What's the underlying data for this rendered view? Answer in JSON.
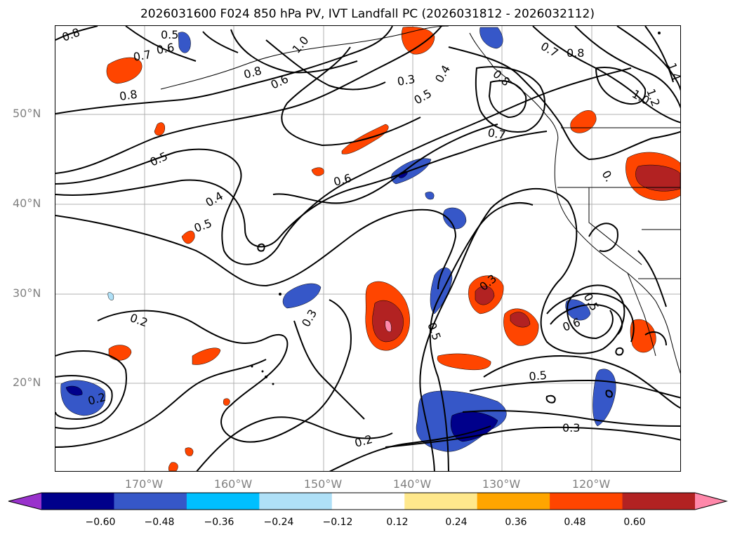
{
  "title": "2026031600 F024 850 hPa PV, IVT Landfall PC (2026031812 - 2026032112)",
  "axes": {
    "lat_labels": [
      "50°N",
      "40°N",
      "30°N",
      "20°N"
    ],
    "lon_labels": [
      "170°W",
      "160°W",
      "150°W",
      "140°W",
      "130°W",
      "120°W"
    ],
    "lat_range": [
      10,
      60
    ],
    "lon_range": [
      -180,
      -110
    ],
    "grid": true
  },
  "colorbar": {
    "tick_labels": [
      "−0.60",
      "−0.48",
      "−0.36",
      "−0.24",
      "−0.12",
      "0.12",
      "0.24",
      "0.36",
      "0.48",
      "0.60"
    ],
    "colors": [
      "#9932cc",
      "#00008b",
      "#3657c8",
      "#00bfff",
      "#afe0f7",
      "#ffffff",
      "#ffe88c",
      "#ffa500",
      "#ff4500",
      "#b22222",
      "#ff88aa"
    ],
    "extend": "both"
  },
  "contour_labels": [
    {
      "text": "0.8"
    },
    {
      "text": "0.5"
    },
    {
      "text": "0.6"
    },
    {
      "text": "0.7"
    },
    {
      "text": "0.8"
    },
    {
      "text": "0.8"
    },
    {
      "text": "0.6"
    },
    {
      "text": "1.0"
    },
    {
      "text": "0.3"
    },
    {
      "text": "0.5"
    },
    {
      "text": "0.4"
    },
    {
      "text": "0.8"
    },
    {
      "text": "0.7"
    },
    {
      "text": "0.8"
    },
    {
      "text": "1.2"
    },
    {
      "text": "1.4"
    },
    {
      "text": "1.0"
    },
    {
      "text": "0.7"
    },
    {
      "text": "0.5"
    },
    {
      "text": "0.6"
    },
    {
      "text": "0.4"
    },
    {
      "text": "0.5"
    },
    {
      "text": "0.3"
    },
    {
      "text": "0.2"
    },
    {
      "text": "0.5"
    },
    {
      "text": "0.3"
    },
    {
      "text": "0.5"
    },
    {
      "text": "0.6"
    },
    {
      "text": "0.5"
    },
    {
      "text": "0.2"
    },
    {
      "text": "0.2"
    },
    {
      "text": "0.3"
    },
    {
      "text": "0."
    }
  ]
}
